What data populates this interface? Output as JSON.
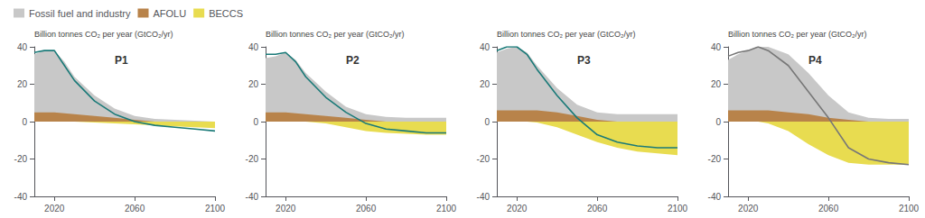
{
  "chart_data": [
    {
      "type": "area",
      "ylabel": "Billion tonnes CO₂ per year (GtCO₂/yr)",
      "annotations": [
        "P1"
      ],
      "x": [
        2010,
        2015,
        2020,
        2025,
        2030,
        2040,
        2050,
        2060,
        2070,
        2080,
        2090,
        2100
      ],
      "series": [
        {
          "name": "Fossil fuel and industry",
          "color": "#c8c8c8",
          "values": [
            36,
            38,
            38,
            32,
            24,
            14,
            7,
            3,
            1.5,
            1,
            0.5,
            0
          ]
        },
        {
          "name": "AFOLU",
          "color": "#b8834a",
          "values": [
            5,
            5,
            5,
            4.5,
            4,
            3,
            2,
            1,
            0,
            -0.5,
            -1,
            -1.5
          ]
        },
        {
          "name": "BECCS",
          "color": "#e8dc50",
          "values": [
            0,
            0,
            0,
            0,
            0,
            -0.5,
            -1,
            -1.5,
            -2,
            -2.5,
            -3,
            -3.5
          ]
        },
        {
          "type": "line",
          "color": "#1a7a78",
          "values": [
            37,
            38,
            38,
            30,
            22,
            11,
            4,
            0,
            -2,
            -3,
            -4,
            -5
          ]
        }
      ],
      "xlim": [
        2010,
        2100
      ],
      "xticks": [
        2020,
        2060,
        2100
      ],
      "ylim": [
        -40,
        40
      ],
      "yticks": [
        -40,
        -20,
        0,
        20,
        40
      ],
      "grid": false,
      "legend": "upper left"
    },
    {
      "type": "area",
      "ylabel": "Billion tonnes CO₂ per year (GtCO₂/yr)",
      "annotations": [
        "P2"
      ],
      "x": [
        2010,
        2015,
        2020,
        2025,
        2030,
        2040,
        2050,
        2060,
        2070,
        2080,
        2090,
        2100
      ],
      "series": [
        {
          "name": "Fossil fuel and industry",
          "color": "#c8c8c8",
          "values": [
            34,
            35,
            37,
            33,
            26,
            16,
            8,
            4,
            2.5,
            2,
            2,
            2
          ]
        },
        {
          "name": "AFOLU",
          "color": "#b8834a",
          "values": [
            5,
            5,
            5,
            4.5,
            4,
            3,
            2,
            1,
            0,
            -0.5,
            -1,
            -1.5
          ]
        },
        {
          "name": "BECCS",
          "color": "#e8dc50",
          "values": [
            0,
            0,
            0,
            0,
            0,
            -1,
            -3,
            -5,
            -6,
            -6.5,
            -7,
            -7
          ]
        },
        {
          "type": "line",
          "color": "#1a7a78",
          "values": [
            36,
            36,
            37,
            32,
            24,
            13,
            5,
            -1,
            -4,
            -5,
            -6,
            -6
          ]
        }
      ],
      "xlim": [
        2010,
        2100
      ],
      "xticks": [
        2020,
        2060,
        2100
      ],
      "ylim": [
        -40,
        40
      ],
      "yticks": [
        -40,
        -20,
        0,
        20,
        40
      ],
      "grid": false
    },
    {
      "type": "area",
      "ylabel": "Billion tonnes CO₂ per year (GtCO₂/yr)",
      "annotations": [
        "P3"
      ],
      "x": [
        2010,
        2015,
        2020,
        2025,
        2030,
        2040,
        2050,
        2060,
        2070,
        2080,
        2090,
        2100
      ],
      "series": [
        {
          "name": "Fossil fuel and industry",
          "color": "#c8c8c8",
          "values": [
            37,
            39,
            40,
            37,
            30,
            18,
            9,
            5,
            4,
            4,
            4,
            4
          ]
        },
        {
          "name": "AFOLU",
          "color": "#b8834a",
          "values": [
            6,
            6,
            6,
            6,
            6,
            5,
            3,
            1,
            0,
            -0.5,
            -0.5,
            -0.5
          ]
        },
        {
          "name": "BECCS",
          "color": "#e8dc50",
          "values": [
            0,
            0,
            0,
            0,
            -0.5,
            -3,
            -7,
            -11,
            -14,
            -16,
            -17,
            -18
          ]
        },
        {
          "type": "line",
          "color": "#1a7a78",
          "values": [
            38,
            40,
            40,
            36,
            28,
            14,
            2,
            -7,
            -11,
            -13,
            -14,
            -14
          ]
        }
      ],
      "xlim": [
        2010,
        2100
      ],
      "xticks": [
        2020,
        2060,
        2100
      ],
      "ylim": [
        -40,
        40
      ],
      "yticks": [
        -40,
        -20,
        0,
        20,
        40
      ],
      "grid": false
    },
    {
      "type": "area",
      "ylabel": "Billion tonnes CO₂ per year (GtCO₂/yr)",
      "annotations": [
        "P4"
      ],
      "x": [
        2010,
        2015,
        2020,
        2025,
        2030,
        2040,
        2050,
        2060,
        2070,
        2080,
        2090,
        2100
      ],
      "series": [
        {
          "name": "Fossil fuel and industry",
          "color": "#c8c8c8",
          "values": [
            33,
            36,
            38,
            40,
            40,
            36,
            26,
            14,
            5,
            2,
            1.5,
            1.5
          ]
        },
        {
          "name": "AFOLU",
          "color": "#b8834a",
          "values": [
            6,
            6,
            6,
            6,
            6,
            5,
            4,
            2,
            1,
            0,
            0,
            0
          ]
        },
        {
          "name": "BECCS",
          "color": "#e8dc50",
          "values": [
            0,
            0,
            0,
            0,
            -1,
            -5,
            -12,
            -18,
            -22,
            -23,
            -23,
            -23
          ]
        },
        {
          "type": "line",
          "color": "#777777",
          "values": [
            35,
            37,
            38,
            40,
            38,
            30,
            16,
            2,
            -14,
            -20,
            -22,
            -23
          ]
        }
      ],
      "xlim": [
        2010,
        2100
      ],
      "xticks": [
        2020,
        2060,
        2100
      ],
      "ylim": [
        -40,
        40
      ],
      "yticks": [
        -40,
        -20,
        0,
        20,
        40
      ],
      "grid": false
    }
  ]
}
